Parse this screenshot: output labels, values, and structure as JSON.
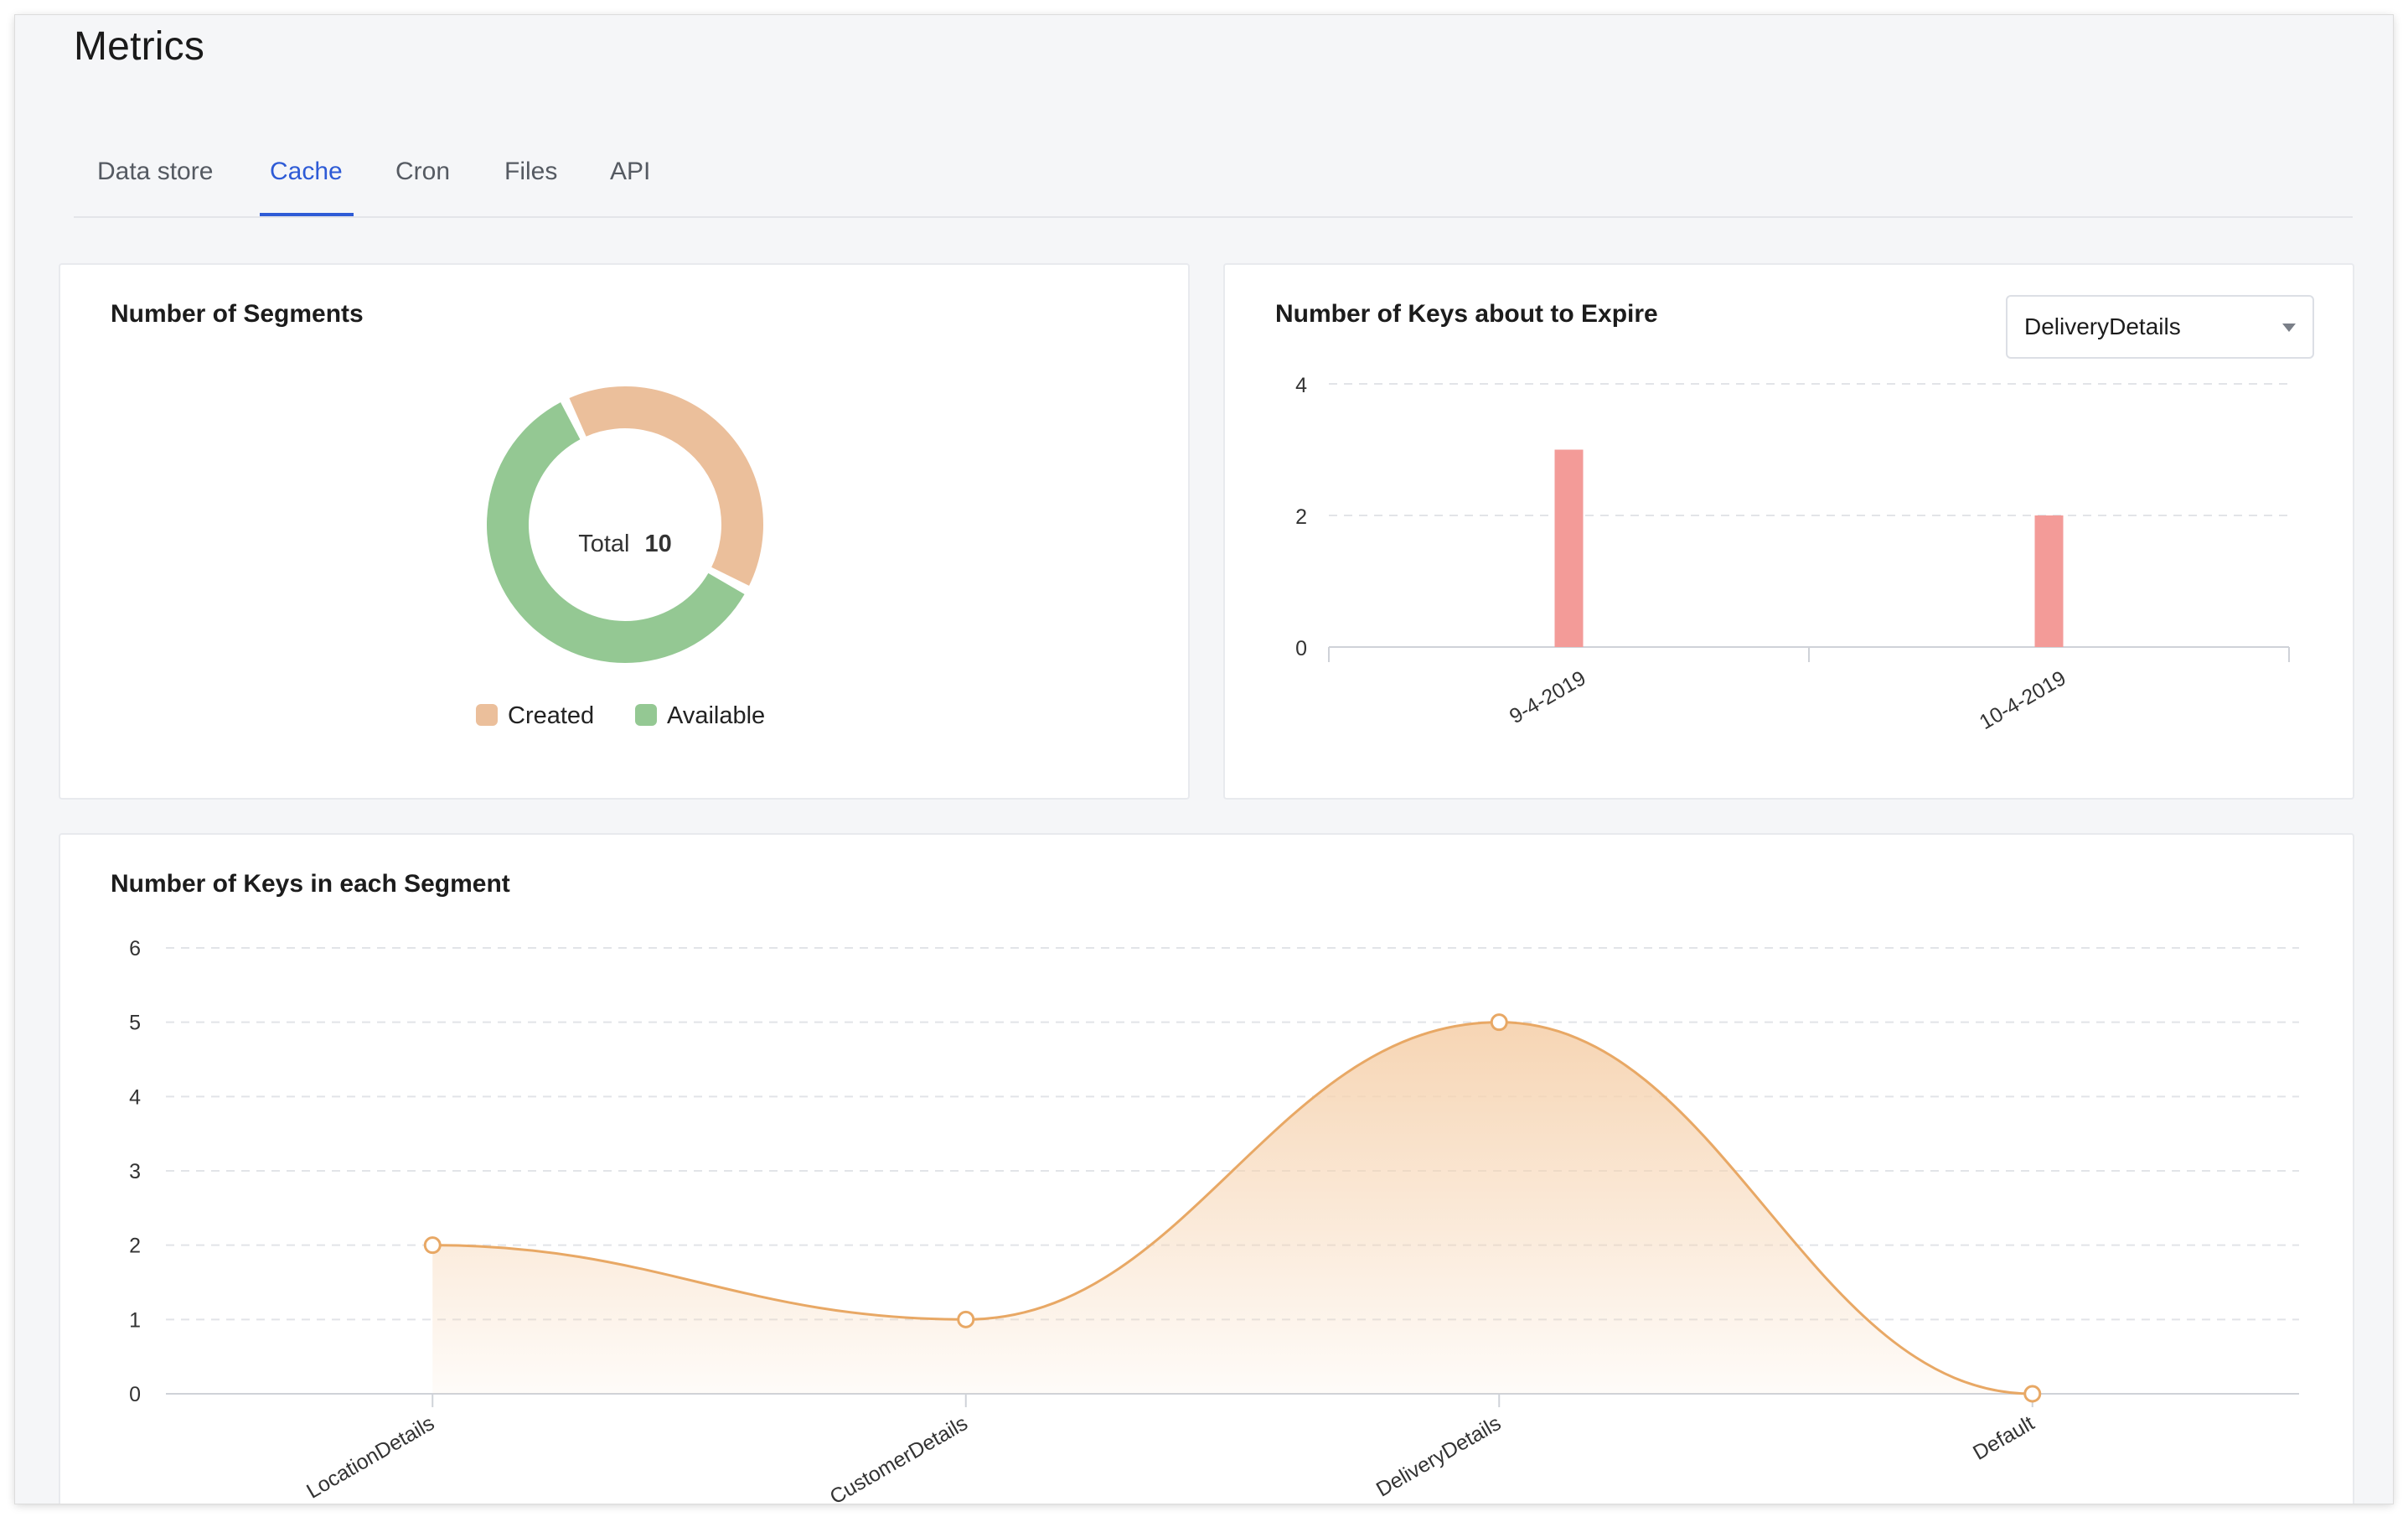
{
  "page": {
    "title": "Metrics"
  },
  "tabs": [
    {
      "label": "Data store",
      "active": false
    },
    {
      "label": "Cache",
      "active": true
    },
    {
      "label": "Cron",
      "active": false
    },
    {
      "label": "Files",
      "active": false
    },
    {
      "label": "API",
      "active": false
    }
  ],
  "colors": {
    "accent": "#2e5bd6",
    "created": "#ebbf9b",
    "available": "#94c893",
    "bar": "#f39b98",
    "line": "#e8a865",
    "area_top": "#f6d3b0"
  },
  "segments_card": {
    "title": "Number of Segments",
    "center_label": "Total",
    "center_value": "10"
  },
  "expire_card": {
    "title": "Number of Keys about to Expire",
    "dropdown": {
      "selected": "DeliveryDetails"
    }
  },
  "keys_card": {
    "title": "Number of Keys in each Segment"
  },
  "chart_data": [
    {
      "type": "pie",
      "title": "Number of Segments",
      "categories": [
        "Created",
        "Available"
      ],
      "values": [
        4,
        6
      ],
      "legend": "bottom"
    },
    {
      "type": "bar",
      "title": "Number of Keys about to Expire",
      "categories": [
        "9-4-2019",
        "10-4-2019"
      ],
      "values": [
        3,
        2
      ],
      "yticks": [
        "0",
        "2",
        "4"
      ],
      "ylim": [
        0,
        4
      ],
      "grid": true
    },
    {
      "type": "area",
      "title": "Number of Keys in each Segment",
      "categories": [
        "LocationDetails",
        "CustomerDetails",
        "DeliveryDetails",
        "Default"
      ],
      "values": [
        2,
        1,
        5,
        0
      ],
      "yticks": [
        "0",
        "1",
        "2",
        "3",
        "4",
        "5",
        "6"
      ],
      "ylim": [
        0,
        6
      ],
      "grid": true
    }
  ]
}
